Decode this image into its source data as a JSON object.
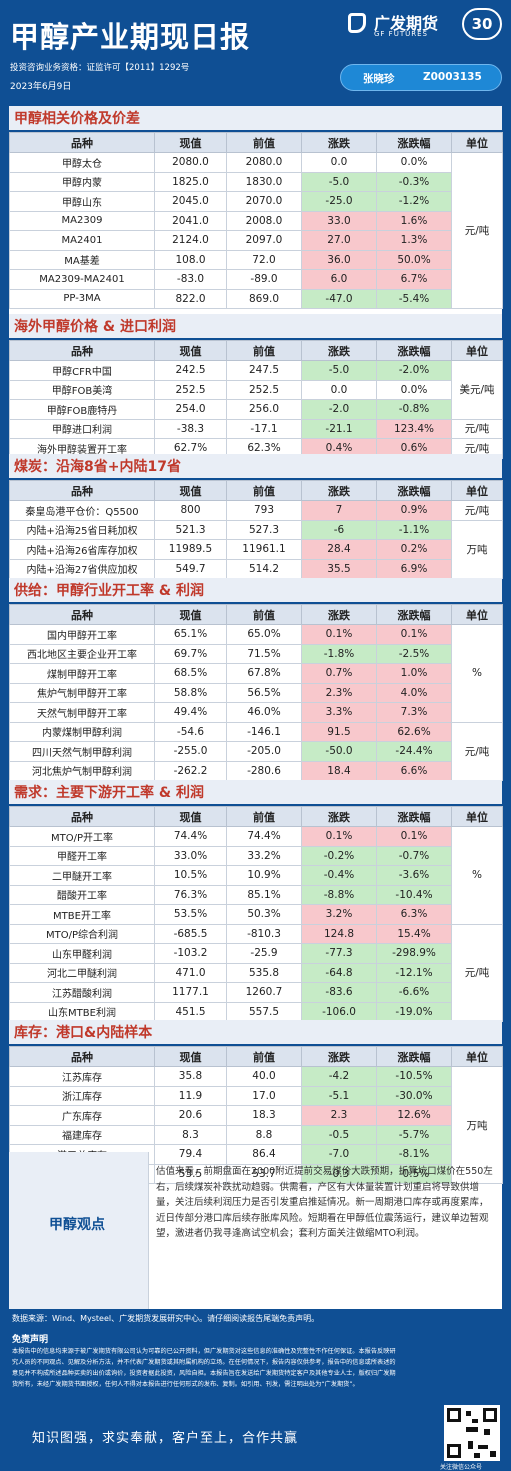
{
  "header": {
    "title": "甲醇产业期现日报",
    "brand_cn": "广发期货",
    "brand_en": "GF FUTURES",
    "anniversary": "30",
    "license": "投资咨询业务资格：证监许可【2011】1292号",
    "date": "2023年6月9日",
    "author": "张晓珍",
    "author_id": "Z0003135"
  },
  "tables": {
    "headers": [
      "品种",
      "现值",
      "前值",
      "涨跌",
      "涨跌幅",
      "单位"
    ],
    "prices": {
      "title": "甲醇相关价格及价差",
      "unit": "元/吨",
      "rows": [
        {
          "name": "甲醇太仓",
          "cur": "2080.0",
          "prev": "2080.0",
          "chg": "0.0",
          "pct": "0.0%",
          "dir": "flat"
        },
        {
          "name": "甲醇内蒙",
          "cur": "1825.0",
          "prev": "1830.0",
          "chg": "-5.0",
          "pct": "-0.3%",
          "dir": "down"
        },
        {
          "name": "甲醇山东",
          "cur": "2045.0",
          "prev": "2070.0",
          "chg": "-25.0",
          "pct": "-1.2%",
          "dir": "down"
        },
        {
          "name": "MA2309",
          "cur": "2041.0",
          "prev": "2008.0",
          "chg": "33.0",
          "pct": "1.6%",
          "dir": "up"
        },
        {
          "name": "MA2401",
          "cur": "2124.0",
          "prev": "2097.0",
          "chg": "27.0",
          "pct": "1.3%",
          "dir": "up"
        },
        {
          "name": "MA基差",
          "cur": "108.0",
          "prev": "72.0",
          "chg": "36.0",
          "pct": "50.0%",
          "dir": "up"
        },
        {
          "name": "MA2309-MA2401",
          "cur": "-83.0",
          "prev": "-89.0",
          "chg": "6.0",
          "pct": "6.7%",
          "dir": "up"
        },
        {
          "name": "PP-3MA",
          "cur": "822.0",
          "prev": "869.0",
          "chg": "-47.0",
          "pct": "-5.4%",
          "dir": "down"
        }
      ]
    },
    "overseas": {
      "title": "海外甲醇价格 & 进口利润",
      "unit1": "美元/吨",
      "unit2": "元/吨",
      "unit3": "元/吨",
      "rows": [
        {
          "name": "甲醇CFR中国",
          "cur": "242.5",
          "prev": "247.5",
          "chg": "-5.0",
          "pct": "-2.0%",
          "dir": "down"
        },
        {
          "name": "甲醇FOB美湾",
          "cur": "252.5",
          "prev": "252.5",
          "chg": "0.0",
          "pct": "0.0%",
          "dir": "flat"
        },
        {
          "name": "甲醇FOB鹿特丹",
          "cur": "254.0",
          "prev": "256.0",
          "chg": "-2.0",
          "pct": "-0.8%",
          "dir": "down"
        },
        {
          "name": "甲醇进口利润",
          "cur": "-38.3",
          "prev": "-17.1",
          "chg": "-21.1",
          "pct": "123.4%",
          "dir": "mixed"
        },
        {
          "name": "海外甲醇装置开工率",
          "cur": "62.7%",
          "prev": "62.3%",
          "chg": "0.4%",
          "pct": "0.6%",
          "dir": "up"
        }
      ]
    },
    "coal": {
      "title": "煤炭：沿海8省+内陆17省",
      "unit1": "元/吨",
      "unit2": "万吨",
      "rows": [
        {
          "name": "秦皇岛港平仓价：Q5500",
          "cur": "800",
          "prev": "793",
          "chg": "7",
          "pct": "0.9%",
          "dir": "up"
        },
        {
          "name": "内陆+沿海25省日耗加权",
          "cur": "521.3",
          "prev": "527.3",
          "chg": "-6",
          "pct": "-1.1%",
          "dir": "down"
        },
        {
          "name": "内陆+沿海26省库存加权",
          "cur": "11989.5",
          "prev": "11961.1",
          "chg": "28.4",
          "pct": "0.2%",
          "dir": "up"
        },
        {
          "name": "内陆+沿海27省供应加权",
          "cur": "549.7",
          "prev": "514.2",
          "chg": "35.5",
          "pct": "6.9%",
          "dir": "up"
        }
      ]
    },
    "supply": {
      "title": "供给：甲醇行业开工率 & 利润",
      "unit1": "%",
      "unit2": "元/吨",
      "rows": [
        {
          "name": "国内甲醇开工率",
          "cur": "65.1%",
          "prev": "65.0%",
          "chg": "0.1%",
          "pct": "0.1%",
          "dir": "up"
        },
        {
          "name": "西北地区主要企业开工率",
          "cur": "69.7%",
          "prev": "71.5%",
          "chg": "-1.8%",
          "pct": "-2.5%",
          "dir": "down"
        },
        {
          "name": "煤制甲醇开工率",
          "cur": "68.5%",
          "prev": "67.8%",
          "chg": "0.7%",
          "pct": "1.0%",
          "dir": "up"
        },
        {
          "name": "焦炉气制甲醇开工率",
          "cur": "58.8%",
          "prev": "56.5%",
          "chg": "2.3%",
          "pct": "4.0%",
          "dir": "up"
        },
        {
          "name": "天然气制甲醇开工率",
          "cur": "49.4%",
          "prev": "46.0%",
          "chg": "3.3%",
          "pct": "7.3%",
          "dir": "up"
        },
        {
          "name": "内蒙煤制甲醇利润",
          "cur": "-54.6",
          "prev": "-146.1",
          "chg": "91.5",
          "pct": "62.6%",
          "dir": "up"
        },
        {
          "name": "四川天然气制甲醇利润",
          "cur": "-255.0",
          "prev": "-205.0",
          "chg": "-50.0",
          "pct": "-24.4%",
          "dir": "down"
        },
        {
          "name": "河北焦炉气制甲醇利润",
          "cur": "-262.2",
          "prev": "-280.6",
          "chg": "18.4",
          "pct": "6.6%",
          "dir": "up"
        }
      ]
    },
    "demand": {
      "title": "需求：主要下游开工率 & 利润",
      "unit1": "%",
      "unit2": "元/吨",
      "rows": [
        {
          "name": "MTO/P开工率",
          "cur": "74.4%",
          "prev": "74.4%",
          "chg": "0.1%",
          "pct": "0.1%",
          "dir": "up"
        },
        {
          "name": "甲醛开工率",
          "cur": "33.0%",
          "prev": "33.2%",
          "chg": "-0.2%",
          "pct": "-0.7%",
          "dir": "down"
        },
        {
          "name": "二甲醚开工率",
          "cur": "10.5%",
          "prev": "10.9%",
          "chg": "-0.4%",
          "pct": "-3.6%",
          "dir": "down"
        },
        {
          "name": "醋酸开工率",
          "cur": "76.3%",
          "prev": "85.1%",
          "chg": "-8.8%",
          "pct": "-10.4%",
          "dir": "down"
        },
        {
          "name": "MTBE开工率",
          "cur": "53.5%",
          "prev": "50.3%",
          "chg": "3.2%",
          "pct": "6.3%",
          "dir": "up"
        },
        {
          "name": "MTO/P综合利润",
          "cur": "-685.5",
          "prev": "-810.3",
          "chg": "124.8",
          "pct": "15.4%",
          "dir": "up"
        },
        {
          "name": "山东甲醛利润",
          "cur": "-103.2",
          "prev": "-25.9",
          "chg": "-77.3",
          "pct": "-298.9%",
          "dir": "down"
        },
        {
          "name": "河北二甲醚利润",
          "cur": "471.0",
          "prev": "535.8",
          "chg": "-64.8",
          "pct": "-12.1%",
          "dir": "down"
        },
        {
          "name": "江苏醋酸利润",
          "cur": "1177.1",
          "prev": "1260.7",
          "chg": "-83.6",
          "pct": "-6.6%",
          "dir": "down"
        },
        {
          "name": "山东MTBE利润",
          "cur": "451.5",
          "prev": "557.5",
          "chg": "-106.0",
          "pct": "-19.0%",
          "dir": "down"
        }
      ]
    },
    "inventory": {
      "title": "库存：港口&内陆样本",
      "unit": "万吨",
      "rows": [
        {
          "name": "江苏库存",
          "cur": "35.8",
          "prev": "40.0",
          "chg": "-4.2",
          "pct": "-10.5%",
          "dir": "down"
        },
        {
          "name": "浙江库存",
          "cur": "11.9",
          "prev": "17.0",
          "chg": "-5.1",
          "pct": "-30.0%",
          "dir": "down"
        },
        {
          "name": "广东库存",
          "cur": "20.6",
          "prev": "18.3",
          "chg": "2.3",
          "pct": "12.6%",
          "dir": "up"
        },
        {
          "name": "福建库存",
          "cur": "8.3",
          "prev": "8.8",
          "chg": "-0.5",
          "pct": "-5.7%",
          "dir": "down"
        },
        {
          "name": "港口总库存",
          "cur": "79.4",
          "prev": "86.4",
          "chg": "-7.0",
          "pct": "-8.1%",
          "dir": "down"
        },
        {
          "name": "甲醇样本企业库存",
          "cur": "53.5",
          "prev": "53.7",
          "chg": "-0.3",
          "pct": "-0.5%",
          "dir": "down"
        }
      ]
    }
  },
  "viewpoint": {
    "label": "甲醇观点",
    "text": "估值来看，前期盘面在2000附近提前交易煤价大跌预期，折算坑口煤价在550左右，后续煤炭补跌扰动趋弱。供需看，产区有大体量装置计划重启将导致供增量，关注后续利润压力是否引发重启推延情况。新一周期港口库存或再度累库，近日传部分港口库后续存胀库风险。短期看在甲醇低位震荡运行，建议单边暂观望，激进者仍我寻逢高试空机会；套利方面关注做缩MTO利润。"
  },
  "footer": {
    "source": "数据来源：Wind、Mysteel、广发期货发展研究中心。请仔细阅读报告尾端免责声明。",
    "disclaimer_title": "免责声明",
    "disclaimer": "本报告中的信息均来源于被广发期货有限公司认为可靠的已公开资料，但广发期货对这些信息的准确性及完整性不作任何保证。本报告反映研究人员的不同观点、见解及分析方法，并不代表广发期货或其附属机构的立场。在任何情况下，报告内容仅供参考，报告中的信息或所表述的意见并不构成所述品种买卖的出价或询价，投资者据此投资，风险自担。本报告旨在发送给广发期货特定客户及其他专业人士，版权归广发期货所有，未经广发期货书面授权，任何人不得对本报告进行任何形式的发布、复制。如引用、刊发，需注明出处为“广发期货”。",
    "slogan": "知识图强，求实奉献，客户至上，合作共赢",
    "qr_caption": "关注微信公众号"
  }
}
